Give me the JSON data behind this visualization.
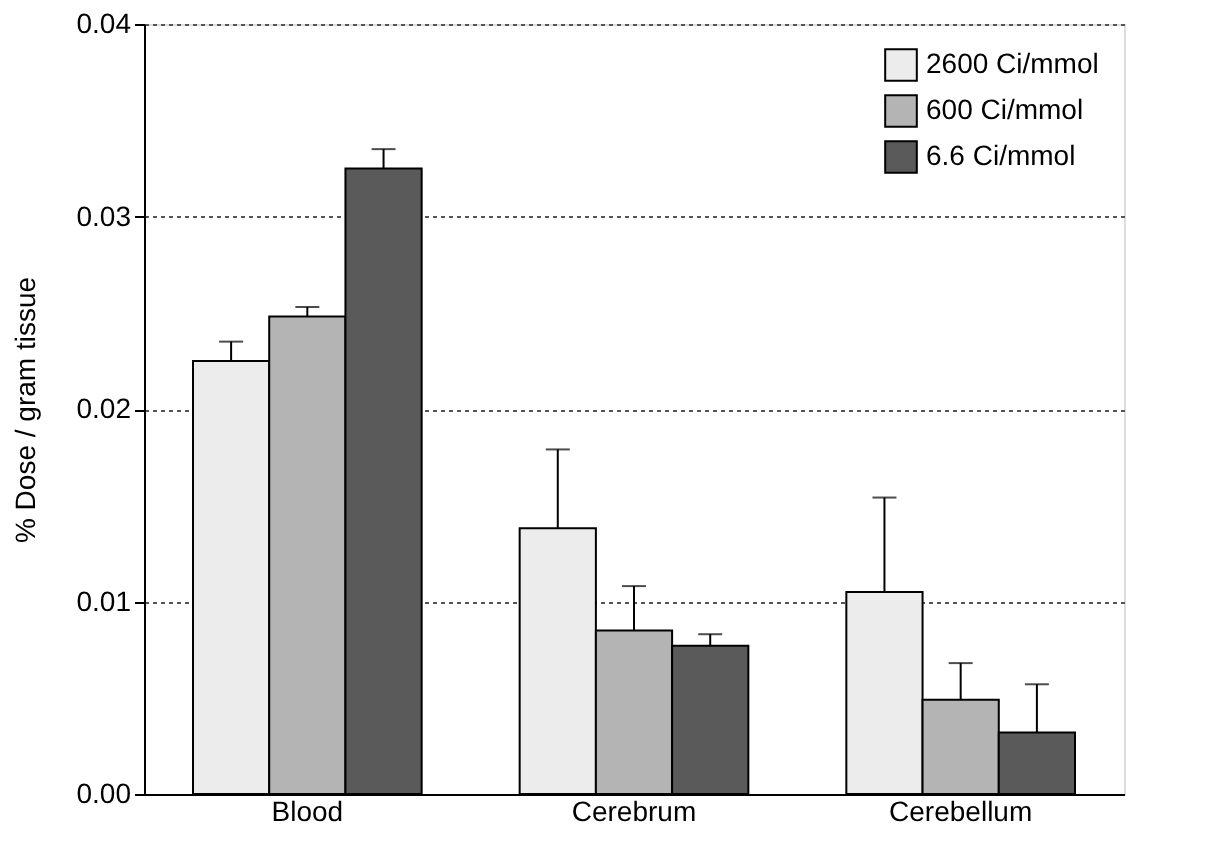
{
  "chart_data": {
    "type": "bar",
    "ylabel": "% Dose / gram tissue",
    "categories": [
      "Blood",
      "Cerebrum",
      "Cerebellum"
    ],
    "series": [
      {
        "name": "2600 Ci/mmol",
        "color": "#ececec",
        "values": [
          0.0225,
          0.0138,
          0.0105
        ],
        "errors": [
          [
            0.0225,
            0.0235
          ],
          [
            0.0138,
            0.0179
          ],
          [
            0.0105,
            0.0154
          ]
        ]
      },
      {
        "name": "600 Ci/mmol",
        "color": "#b4b4b4",
        "values": [
          0.0248,
          0.0085,
          0.0049
        ],
        "errors": [
          [
            0.0248,
            0.0253
          ],
          [
            0.0085,
            0.0108
          ],
          [
            0.0049,
            0.0068
          ]
        ]
      },
      {
        "name": "6.6 Ci/mmol",
        "color": "#5a5a5a",
        "values": [
          0.0325,
          0.0077,
          0.0032
        ],
        "errors": [
          [
            0.0325,
            0.0335
          ],
          [
            0.0077,
            0.0083
          ],
          [
            0.0032,
            0.0057
          ]
        ]
      }
    ],
    "ylim": [
      0,
      0.04
    ],
    "yticks": [
      {
        "value": 0,
        "label": "0.00"
      },
      {
        "value": 0.01,
        "label": "0.01"
      },
      {
        "value": 0.02,
        "label": "0.02"
      },
      {
        "value": 0.03,
        "label": "0.03"
      },
      {
        "value": 0.04,
        "label": "0.04"
      }
    ],
    "grid": "y",
    "legend": "top right"
  }
}
